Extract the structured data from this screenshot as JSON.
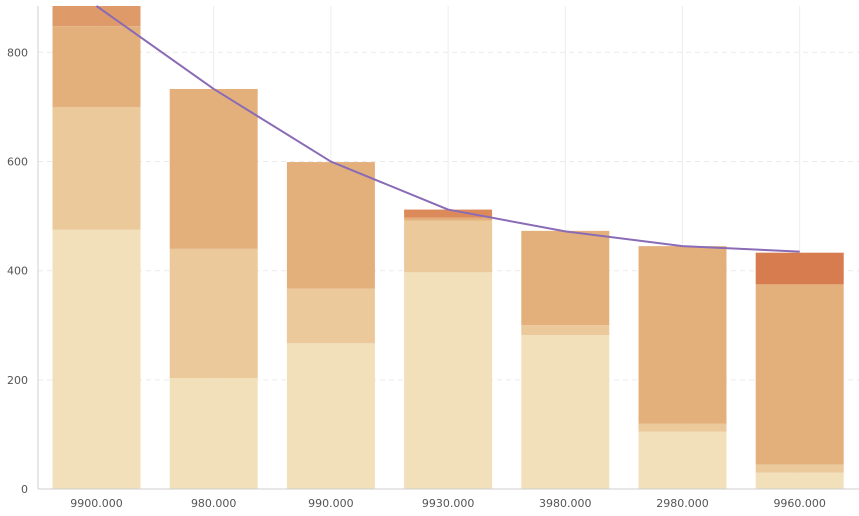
{
  "chart_data": {
    "type": "bar",
    "stacked": true,
    "categories": [
      "9900.000",
      "980.000",
      "990.000",
      "9930.000",
      "3980.000",
      "2980.000",
      "9960.000"
    ],
    "series": [
      {
        "values": [
          475,
          203,
          267,
          397,
          282,
          105,
          30
        ],
        "color": "#f2e0bb"
      },
      {
        "values": [
          225,
          237,
          100,
          95,
          18,
          15,
          15
        ],
        "color": "#ebc99a"
      },
      {
        "values": [
          148,
          293,
          232,
          5,
          173,
          325,
          330
        ],
        "color": "#e3b07c"
      },
      {
        "values": [
          37,
          0,
          0,
          15,
          0,
          0,
          58
        ],
        "colors": [
          "#df9a69",
          "#df9a69",
          "#df9a69",
          "#dc8a5a",
          "#df9a69",
          "#df9a69",
          "#d77c4e"
        ]
      }
    ],
    "line": {
      "values": [
        885,
        733,
        600,
        512,
        472,
        445,
        435
      ],
      "color": "#8a6bb5"
    },
    "ylim": [
      0,
      885
    ],
    "yticks": [
      0,
      200,
      400,
      600,
      800
    ],
    "grid": true,
    "legend": "none"
  }
}
